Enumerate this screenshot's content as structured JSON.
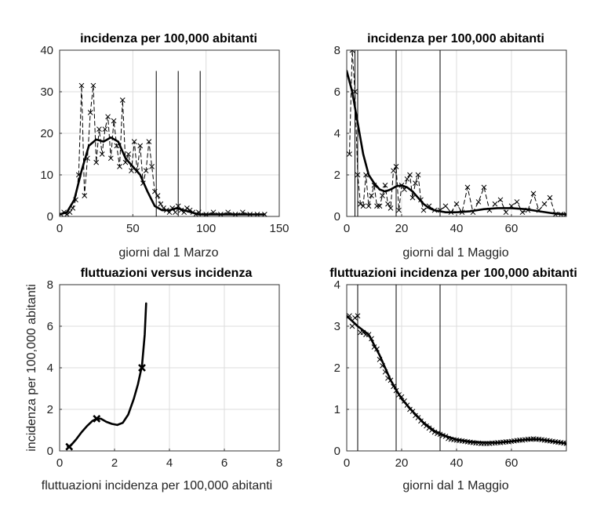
{
  "chart_data": [
    {
      "type": "line",
      "title": "incidenza per 100,000 abitanti",
      "xlabel": "giorni dal 1 Marzo",
      "ylabel": "",
      "xlim": [
        0,
        150
      ],
      "ylim": [
        0,
        40
      ],
      "xticks": [
        0,
        50,
        100,
        150
      ],
      "yticks": [
        0,
        10,
        20,
        30,
        40
      ],
      "grid": true,
      "vlines": [
        66,
        81,
        96
      ],
      "vline_top": 35,
      "series": [
        {
          "name": "daily (dashed, x markers)",
          "style": "dashed-x",
          "x": [
            1,
            3,
            5,
            7,
            9,
            11,
            13,
            15,
            17,
            19,
            21,
            23,
            25,
            27,
            29,
            31,
            33,
            35,
            37,
            39,
            41,
            43,
            45,
            47,
            49,
            51,
            53,
            55,
            57,
            59,
            61,
            63,
            65,
            67,
            69,
            71,
            73,
            75,
            77,
            79,
            81,
            83,
            85,
            87,
            89,
            91,
            93,
            95,
            100,
            105,
            110,
            115,
            120,
            125,
            130,
            135,
            140
          ],
          "y": [
            0.5,
            1,
            0.5,
            1,
            2,
            4,
            10,
            31.5,
            5,
            14,
            25,
            31.5,
            13,
            21,
            15,
            21,
            24,
            14,
            23,
            17,
            12,
            28,
            13,
            15,
            11,
            18,
            11,
            17,
            8,
            11,
            18,
            12,
            6,
            5,
            3,
            2,
            1.5,
            1,
            2,
            1,
            2.5,
            1.5,
            1,
            2,
            1.5,
            1,
            0.5,
            1,
            0.5,
            1,
            0.5,
            1,
            0.5,
            1,
            0.5,
            0.5,
            0.5
          ]
        },
        {
          "name": "smoothed",
          "style": "solid-bold",
          "x": [
            0,
            5,
            10,
            15,
            20,
            25,
            30,
            35,
            40,
            45,
            50,
            55,
            60,
            65,
            70,
            75,
            80,
            85,
            90,
            95,
            100,
            110,
            120,
            130,
            140
          ],
          "y": [
            0.5,
            1,
            4,
            11,
            17,
            18.5,
            18,
            19,
            18,
            14,
            12,
            10,
            6,
            2.5,
            1.5,
            1.5,
            2,
            1.5,
            1,
            0.5,
            0.5,
            0.5,
            0.5,
            0.5,
            0.5
          ]
        }
      ]
    },
    {
      "type": "line",
      "title": "incidenza per 100,000 abitanti",
      "xlabel": "giorni dal 1 Maggio",
      "ylabel": "",
      "xlim": [
        0,
        80
      ],
      "ylim": [
        0,
        8
      ],
      "xticks": [
        0,
        20,
        40,
        60
      ],
      "yticks": [
        0,
        2,
        4,
        6,
        8
      ],
      "grid": true,
      "vlines": [
        3,
        4,
        18,
        34
      ],
      "vline_top": 8,
      "series": [
        {
          "name": "daily (dashed, x markers)",
          "style": "dashed-x",
          "x": [
            1,
            2,
            3,
            4,
            5,
            6,
            7,
            8,
            9,
            10,
            11,
            12,
            13,
            14,
            15,
            16,
            17,
            18,
            19,
            20,
            21,
            22,
            23,
            24,
            25,
            26,
            27,
            28,
            30,
            32,
            34,
            36,
            38,
            40,
            42,
            44,
            46,
            48,
            50,
            52,
            54,
            56,
            58,
            60,
            62,
            64,
            66,
            68,
            70,
            72,
            74,
            76,
            78,
            80
          ],
          "y": [
            3,
            8,
            6,
            2,
            0.6,
            0.5,
            2,
            0.5,
            1,
            1.5,
            0.5,
            0.5,
            1,
            1.5,
            0.6,
            0.4,
            2.2,
            2.4,
            0.3,
            1.5,
            1.3,
            1.8,
            2.0,
            0.9,
            1.6,
            2.0,
            0.8,
            0.3,
            0.5,
            0.3,
            0.3,
            0.5,
            0.2,
            0.6,
            0.2,
            1.4,
            0.2,
            0.7,
            1.4,
            0.3,
            0.6,
            0.8,
            0.2,
            0.5,
            0.7,
            0.2,
            0.3,
            1.1,
            0.3,
            0.6,
            0.9,
            0.1,
            0.1,
            0.1
          ]
        },
        {
          "name": "smoothed",
          "style": "solid-bold",
          "x": [
            0,
            2,
            4,
            6,
            8,
            10,
            12,
            14,
            16,
            18,
            20,
            22,
            24,
            26,
            28,
            30,
            32,
            34,
            36,
            38,
            40,
            45,
            50,
            55,
            60,
            65,
            70,
            75,
            80
          ],
          "y": [
            7,
            6,
            4.5,
            3,
            2,
            1.6,
            1.3,
            1.2,
            1.3,
            1.45,
            1.5,
            1.4,
            1.2,
            0.9,
            0.6,
            0.4,
            0.3,
            0.25,
            0.2,
            0.2,
            0.2,
            0.25,
            0.35,
            0.4,
            0.4,
            0.35,
            0.25,
            0.15,
            0.1
          ]
        }
      ]
    },
    {
      "type": "line",
      "title": "fluttuazioni versus incidenza",
      "xlabel": "fluttuazioni incidenza per 100,000 abitanti",
      "ylabel": "incidenza per 100,000 abitanti",
      "xlim": [
        0,
        8
      ],
      "ylim": [
        0,
        8
      ],
      "xticks": [
        0,
        2,
        4,
        6,
        8
      ],
      "yticks": [
        0,
        2,
        4,
        6,
        8
      ],
      "grid": true,
      "vlines": [],
      "series": [
        {
          "name": "curve",
          "style": "solid-bold",
          "x": [
            0.3,
            0.4,
            0.6,
            0.8,
            1.0,
            1.2,
            1.35,
            1.5,
            1.7,
            1.9,
            2.1,
            2.3,
            2.5,
            2.7,
            2.85,
            3.0,
            3.1,
            3.15
          ],
          "y": [
            0.2,
            0.25,
            0.55,
            0.9,
            1.2,
            1.45,
            1.55,
            1.55,
            1.4,
            1.3,
            1.25,
            1.35,
            1.75,
            2.5,
            3.2,
            4.1,
            5.6,
            7.1
          ]
        },
        {
          "name": "markers",
          "style": "x-only",
          "x": [
            0.35,
            1.35,
            3.0
          ],
          "y": [
            0.2,
            1.55,
            4.0
          ]
        }
      ]
    },
    {
      "type": "line",
      "title": "fluttuazioni incidenza per 100,000 abitanti",
      "xlabel": "giorni dal 1 Maggio",
      "ylabel": "",
      "xlim": [
        0,
        80
      ],
      "ylim": [
        0,
        4
      ],
      "xticks": [
        0,
        20,
        40,
        60
      ],
      "yticks": [
        0,
        1,
        2,
        3,
        4
      ],
      "grid": true,
      "vlines": [
        4,
        18,
        34
      ],
      "vline_top": 4,
      "series": [
        {
          "name": "data (x markers)",
          "style": "x-only",
          "x": [
            1,
            2,
            3,
            4,
            5,
            6,
            7,
            8,
            9,
            10,
            11,
            12,
            13,
            14,
            15,
            16,
            17,
            18,
            19,
            20,
            21,
            22,
            23,
            24,
            25,
            26,
            27,
            28,
            29,
            30,
            31,
            32,
            33,
            34,
            35,
            36,
            37,
            38,
            39,
            40,
            41,
            42,
            43,
            44,
            45,
            46,
            47,
            48,
            49,
            50,
            51,
            52,
            53,
            54,
            55,
            56,
            57,
            58,
            59,
            60,
            61,
            62,
            63,
            64,
            65,
            66,
            67,
            68,
            69,
            70,
            71,
            72,
            73,
            74,
            75,
            76,
            77,
            78,
            79,
            80
          ],
          "y": [
            3.25,
            3.0,
            3.2,
            3.25,
            2.85,
            2.85,
            2.8,
            2.8,
            2.7,
            2.5,
            2.45,
            2.2,
            2.05,
            1.9,
            1.75,
            1.7,
            1.55,
            1.45,
            1.35,
            1.3,
            1.2,
            1.1,
            1.0,
            0.95,
            0.85,
            0.8,
            0.72,
            0.65,
            0.6,
            0.55,
            0.5,
            0.45,
            0.42,
            0.4,
            0.37,
            0.35,
            0.3,
            0.28,
            0.27,
            0.26,
            0.25,
            0.24,
            0.23,
            0.22,
            0.21,
            0.2,
            0.19,
            0.19,
            0.18,
            0.18,
            0.18,
            0.18,
            0.19,
            0.19,
            0.2,
            0.2,
            0.21,
            0.22,
            0.22,
            0.23,
            0.24,
            0.25,
            0.26,
            0.26,
            0.27,
            0.28,
            0.28,
            0.29,
            0.28,
            0.28,
            0.27,
            0.26,
            0.25,
            0.24,
            0.23,
            0.22,
            0.21,
            0.2,
            0.19,
            0.18
          ]
        },
        {
          "name": "smoothed",
          "style": "solid-bold",
          "x": [
            0,
            4,
            8,
            12,
            16,
            20,
            24,
            28,
            32,
            36,
            40,
            45,
            50,
            55,
            60,
            65,
            70,
            75,
            80
          ],
          "y": [
            3.25,
            3.0,
            2.8,
            2.3,
            1.7,
            1.25,
            0.95,
            0.68,
            0.48,
            0.36,
            0.27,
            0.22,
            0.2,
            0.2,
            0.23,
            0.27,
            0.28,
            0.23,
            0.18
          ]
        }
      ]
    }
  ]
}
